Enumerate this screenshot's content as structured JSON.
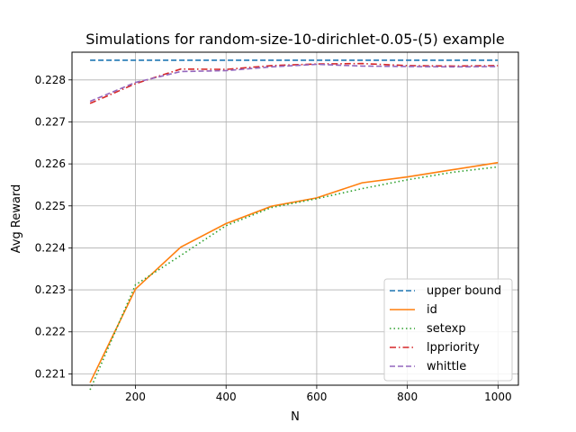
{
  "chart_data": {
    "type": "line",
    "title": "Simulations for random-size-10-dirichlet-0.05-(5) example",
    "xlabel": "N",
    "ylabel": "Avg Reward",
    "xlim": [
      60,
      1045
    ],
    "ylim": [
      0.22073,
      0.22866
    ],
    "xticks": [
      200,
      400,
      600,
      800,
      1000
    ],
    "xtick_labels": [
      "200",
      "400",
      "600",
      "800",
      "1000"
    ],
    "yticks": [
      0.221,
      0.222,
      0.223,
      0.224,
      0.225,
      0.226,
      0.227,
      0.228
    ],
    "ytick_labels": [
      "0.221",
      "0.222",
      "0.223",
      "0.224",
      "0.225",
      "0.226",
      "0.227",
      "0.228"
    ],
    "grid": true,
    "legend_position": "bottom-right",
    "x": [
      100,
      200,
      300,
      400,
      500,
      600,
      700,
      800,
      900,
      1000
    ],
    "series": [
      {
        "name": "upper bound",
        "color": "#1f77b4",
        "dash": "dashed",
        "values": [
          0.22847,
          0.22847,
          0.22847,
          0.22847,
          0.22847,
          0.22847,
          0.22847,
          0.22847,
          0.22847,
          0.22847
        ]
      },
      {
        "name": "id",
        "color": "#ff7f0e",
        "dash": "solid",
        "values": [
          0.22079,
          0.22302,
          0.22402,
          0.22458,
          0.22499,
          0.22519,
          0.22555,
          0.22569,
          0.22586,
          0.22603
        ]
      },
      {
        "name": "setexp",
        "color": "#2ca02c",
        "dash": "dotted",
        "values": [
          0.22062,
          0.22312,
          0.22382,
          0.22453,
          0.22496,
          0.22517,
          0.22541,
          0.22562,
          0.2258,
          0.22593
        ]
      },
      {
        "name": "lppriority",
        "color": "#d62728",
        "dash": "dashdot",
        "values": [
          0.22744,
          0.22791,
          0.22826,
          0.22825,
          0.22834,
          0.22838,
          0.22839,
          0.22834,
          0.22833,
          0.22834
        ]
      },
      {
        "name": "whittle",
        "color": "#9467bd",
        "dash": "dashed",
        "values": [
          0.22749,
          0.22794,
          0.2282,
          0.22822,
          0.22831,
          0.22837,
          0.22833,
          0.22832,
          0.22831,
          0.22832
        ]
      }
    ]
  }
}
